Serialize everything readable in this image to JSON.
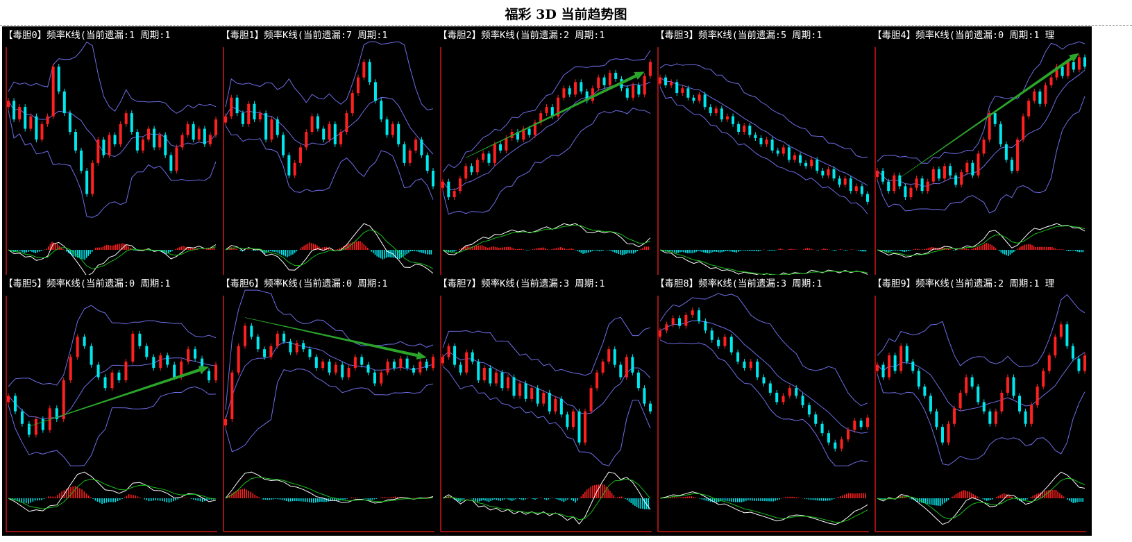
{
  "page": {
    "title": "福彩 3D 当前趋势图"
  },
  "colors": {
    "up": "#ff2020",
    "down": "#00e8ee",
    "band": "#6e6ee8",
    "axis": "#d01818",
    "signal": "#19c019",
    "macd": "#ffffff",
    "arrow": "#2aa52a"
  },
  "chart_data": [
    {
      "type": "candlestick",
      "title": "【毒胆0】频率K线(当前遗漏:1 周期:1",
      "trend_arrow": "none",
      "closes": [
        0.7,
        0.58,
        0.66,
        0.52,
        0.6,
        0.45,
        0.55,
        0.6,
        0.92,
        0.76,
        0.62,
        0.5,
        0.38,
        0.25,
        0.1,
        0.3,
        0.45,
        0.35,
        0.48,
        0.42,
        0.55,
        0.62,
        0.5,
        0.38,
        0.45,
        0.52,
        0.4,
        0.48,
        0.35,
        0.25,
        0.4,
        0.48,
        0.55,
        0.45,
        0.52,
        0.42,
        0.48,
        0.58
      ]
    },
    {
      "type": "candlestick",
      "title": "【毒胆1】频率K线(当前遗漏:7 周期:1",
      "trend_arrow": "none",
      "closes": [
        0.6,
        0.72,
        0.62,
        0.55,
        0.68,
        0.58,
        0.62,
        0.45,
        0.58,
        0.48,
        0.35,
        0.22,
        0.3,
        0.4,
        0.5,
        0.6,
        0.52,
        0.45,
        0.55,
        0.42,
        0.5,
        0.62,
        0.75,
        0.85,
        0.95,
        0.82,
        0.7,
        0.58,
        0.48,
        0.55,
        0.42,
        0.3,
        0.38,
        0.45,
        0.35,
        0.25,
        0.15
      ]
    },
    {
      "type": "candlestick",
      "title": "【毒胆2】频率K线(当前遗漏:2 周期:1",
      "trend_arrow": "up",
      "closes": [
        0.18,
        0.08,
        0.12,
        0.2,
        0.28,
        0.24,
        0.32,
        0.36,
        0.3,
        0.42,
        0.38,
        0.46,
        0.5,
        0.45,
        0.52,
        0.48,
        0.56,
        0.62,
        0.66,
        0.6,
        0.72,
        0.78,
        0.74,
        0.82,
        0.76,
        0.7,
        0.78,
        0.85,
        0.8,
        0.88,
        0.84,
        0.78,
        0.72,
        0.8,
        0.74,
        0.86,
        0.95
      ]
    },
    {
      "type": "candlestick",
      "title": "【毒胆3】频率K线(当前遗漏:5 周期:1",
      "trend_arrow": "none",
      "closes": [
        0.85,
        0.8,
        0.82,
        0.75,
        0.78,
        0.72,
        0.7,
        0.74,
        0.66,
        0.62,
        0.65,
        0.58,
        0.6,
        0.55,
        0.5,
        0.54,
        0.48,
        0.46,
        0.42,
        0.45,
        0.38,
        0.36,
        0.4,
        0.32,
        0.35,
        0.3,
        0.28,
        0.32,
        0.25,
        0.22,
        0.26,
        0.2,
        0.16,
        0.2,
        0.12,
        0.15,
        0.1,
        0.05
      ]
    },
    {
      "type": "candlestick",
      "title": "【毒胆4】频率K线(当前遗漏:0 周期:1 理",
      "trend_arrow": "up",
      "closes": [
        0.25,
        0.18,
        0.12,
        0.22,
        0.15,
        0.08,
        0.14,
        0.2,
        0.12,
        0.18,
        0.26,
        0.2,
        0.28,
        0.22,
        0.16,
        0.24,
        0.3,
        0.22,
        0.36,
        0.45,
        0.62,
        0.55,
        0.42,
        0.32,
        0.25,
        0.45,
        0.6,
        0.7,
        0.76,
        0.68,
        0.8,
        0.85,
        0.92,
        0.86,
        0.95,
        0.9,
        0.98,
        0.92
      ]
    },
    {
      "type": "candlestick",
      "title": "【毒胆5】频率K线(当前遗漏:0 周期:1",
      "trend_arrow": "up",
      "closes": [
        0.4,
        0.3,
        0.22,
        0.15,
        0.25,
        0.18,
        0.32,
        0.25,
        0.5,
        0.65,
        0.78,
        0.72,
        0.6,
        0.52,
        0.45,
        0.55,
        0.5,
        0.62,
        0.8,
        0.72,
        0.65,
        0.58,
        0.66,
        0.6,
        0.52,
        0.62,
        0.7,
        0.64,
        0.56,
        0.5,
        0.6
      ]
    },
    {
      "type": "candlestick",
      "title": "【毒胆6】频率K线(当前遗漏:0 周期:1",
      "trend_arrow": "up",
      "closes": [
        0.25,
        0.55,
        0.72,
        0.85,
        0.78,
        0.7,
        0.65,
        0.72,
        0.8,
        0.75,
        0.68,
        0.74,
        0.7,
        0.65,
        0.58,
        0.62,
        0.55,
        0.6,
        0.52,
        0.58,
        0.65,
        0.6,
        0.55,
        0.48,
        0.55,
        0.62,
        0.58,
        0.64,
        0.58,
        0.55,
        0.62,
        0.58,
        0.65
      ]
    },
    {
      "type": "candlestick",
      "title": "【毒胆7】频率K线(当前遗漏:3 周期:1",
      "trend_arrow": "none",
      "closes": [
        0.65,
        0.72,
        0.6,
        0.55,
        0.68,
        0.62,
        0.5,
        0.58,
        0.48,
        0.55,
        0.45,
        0.52,
        0.4,
        0.48,
        0.38,
        0.45,
        0.35,
        0.42,
        0.3,
        0.38,
        0.28,
        0.2,
        0.3,
        0.1,
        0.3,
        0.45,
        0.55,
        0.62,
        0.7,
        0.6,
        0.52,
        0.65,
        0.55,
        0.45,
        0.35,
        0.3
      ]
    },
    {
      "type": "candlestick",
      "title": "【毒胆8】频率K线(当前遗漏:3 周期:1",
      "trend_arrow": "none",
      "closes": [
        0.82,
        0.86,
        0.9,
        0.85,
        0.92,
        0.95,
        0.88,
        0.82,
        0.76,
        0.72,
        0.78,
        0.68,
        0.62,
        0.58,
        0.62,
        0.52,
        0.48,
        0.42,
        0.36,
        0.4,
        0.45,
        0.4,
        0.34,
        0.28,
        0.22,
        0.16,
        0.1,
        0.06,
        0.12,
        0.18,
        0.24,
        0.2,
        0.26
      ]
    },
    {
      "type": "candlestick",
      "title": "【毒胆9】频率K线(当前遗漏:2 周期:1 理",
      "trend_arrow": "none",
      "closes": [
        0.6,
        0.52,
        0.66,
        0.56,
        0.72,
        0.62,
        0.56,
        0.46,
        0.4,
        0.3,
        0.2,
        0.1,
        0.22,
        0.32,
        0.42,
        0.52,
        0.46,
        0.36,
        0.3,
        0.22,
        0.3,
        0.42,
        0.52,
        0.4,
        0.3,
        0.22,
        0.34,
        0.46,
        0.56,
        0.66,
        0.78,
        0.86,
        0.72,
        0.64,
        0.56,
        0.66
      ]
    }
  ]
}
